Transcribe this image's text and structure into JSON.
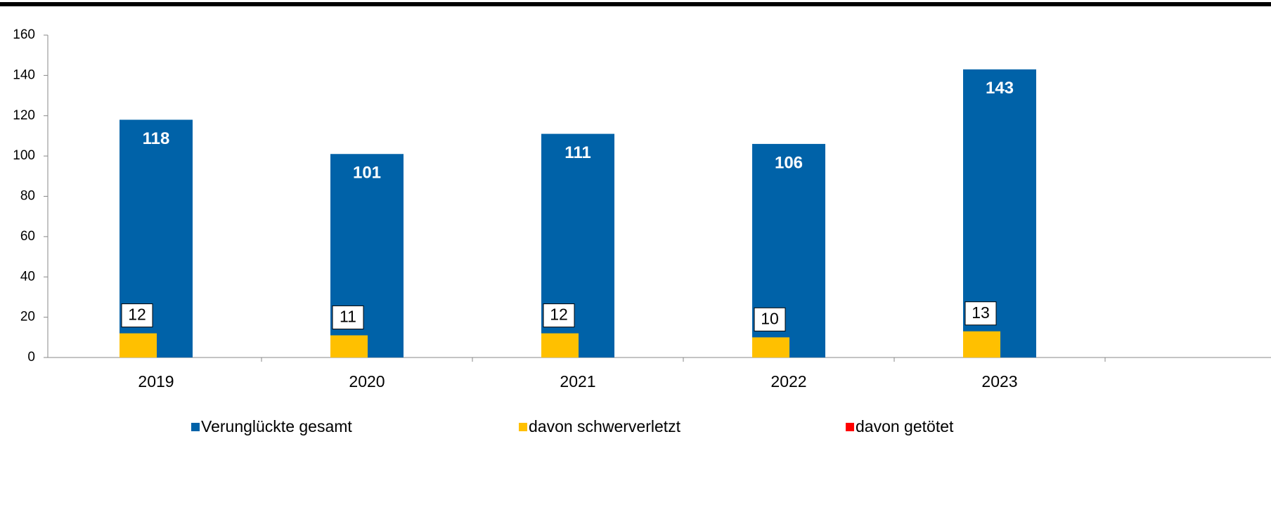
{
  "chart_data": {
    "type": "bar",
    "categories": [
      "2019",
      "2020",
      "2021",
      "2022",
      "2023"
    ],
    "series": [
      {
        "name": "Verunglückte gesamt",
        "color": "#0062a8",
        "values": [
          118,
          101,
          111,
          106,
          143
        ]
      },
      {
        "name": "davon schwerverletzt",
        "color": "#ffc000",
        "values": [
          12,
          11,
          12,
          10,
          13
        ]
      },
      {
        "name": "davon getötet",
        "color": "#ff0000",
        "values": [
          0,
          0,
          0,
          0,
          0
        ]
      }
    ],
    "ylim": [
      0,
      160
    ],
    "yticks": [
      0,
      20,
      40,
      60,
      80,
      100,
      120,
      140,
      160
    ],
    "legend": "bottom"
  }
}
